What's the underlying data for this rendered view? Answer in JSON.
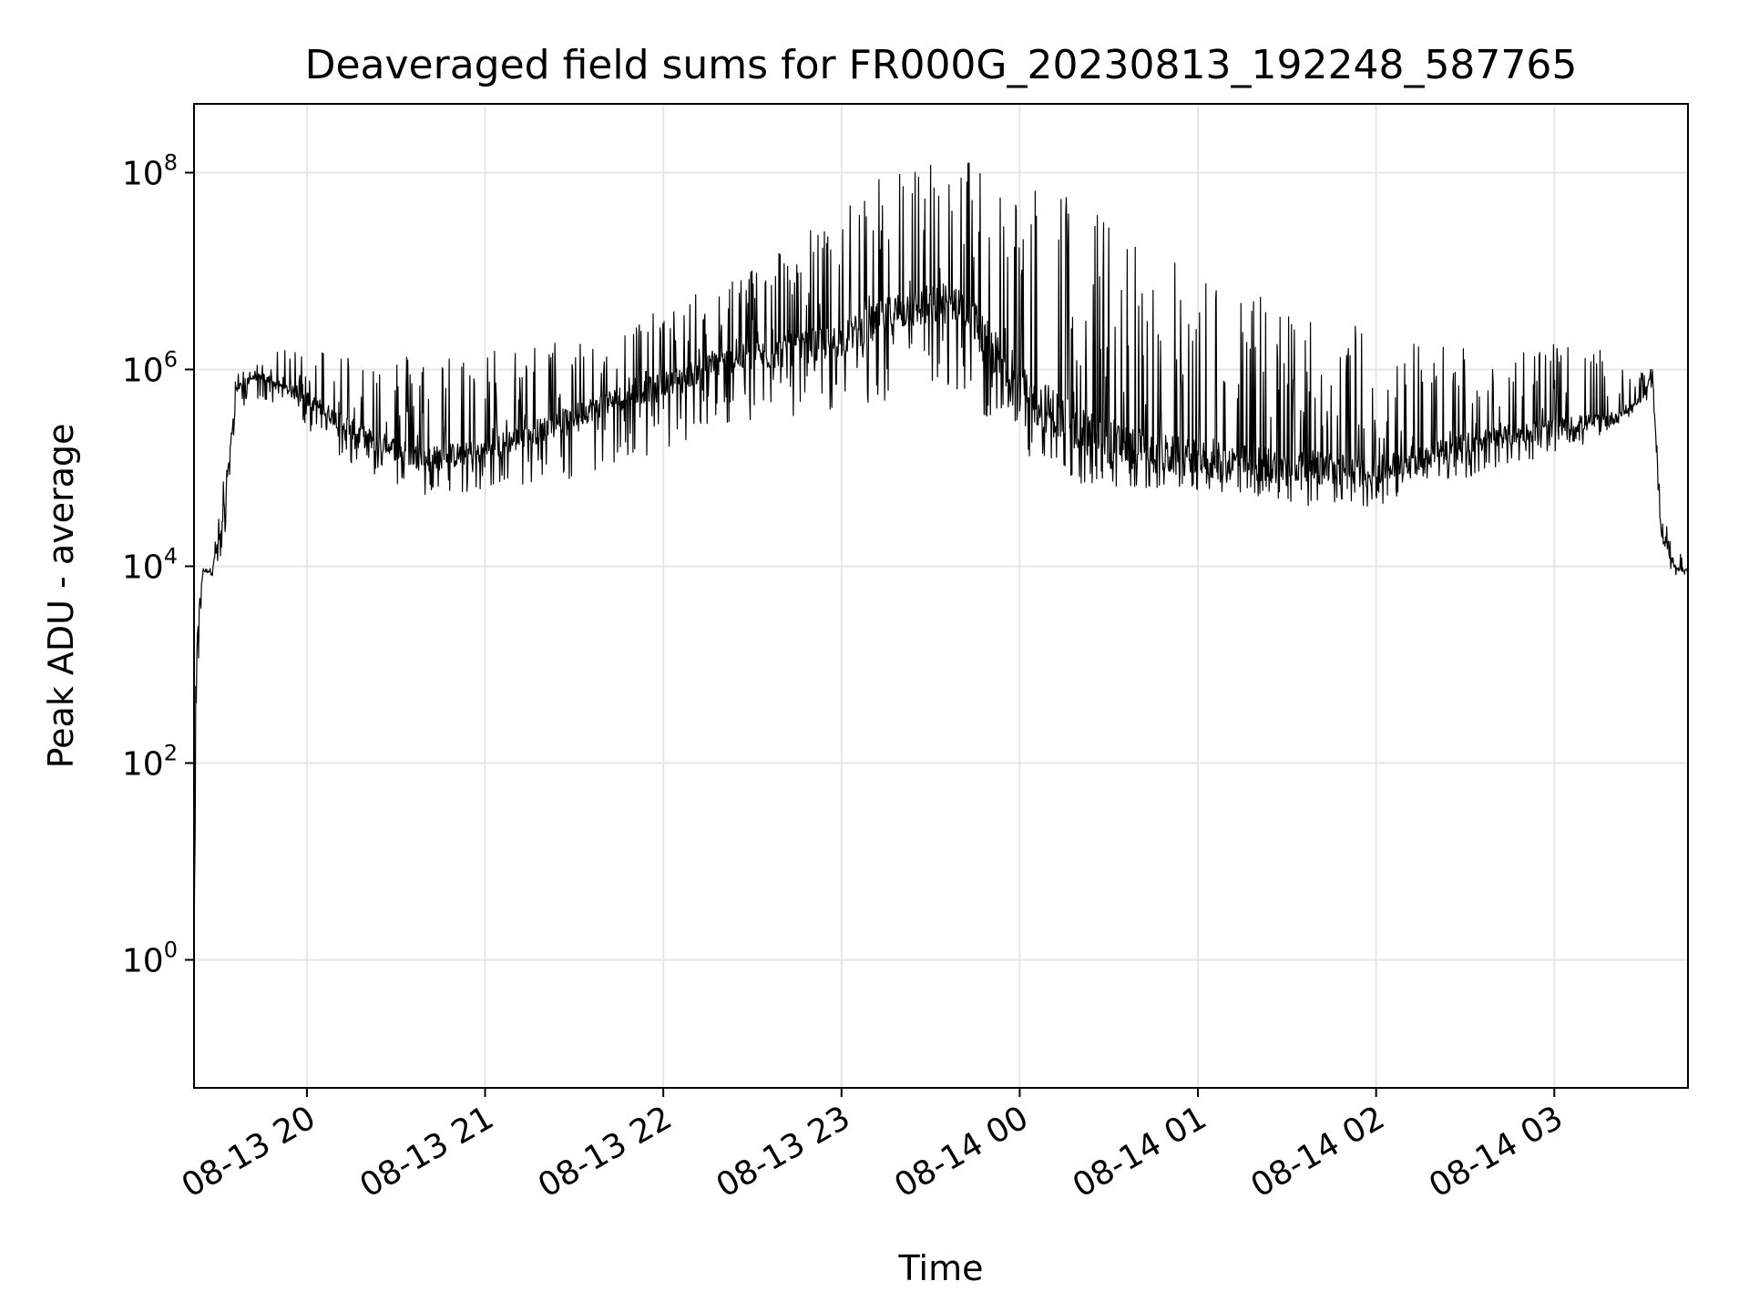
{
  "chart_data": {
    "type": "line",
    "title": "Deaveraged field sums for FR000G_20230813_192248_587765",
    "xlabel": "Time",
    "ylabel": "Peak ADU - average",
    "yscale": "log",
    "ylim": [
      0.05,
      500000000.0
    ],
    "xlim": [
      "2023-08-13 19:22",
      "2023-08-14 03:45"
    ],
    "grid": true,
    "x_ticks": [
      "08-13 20",
      "08-13 21",
      "08-13 22",
      "08-13 23",
      "08-14 00",
      "08-14 01",
      "08-14 02",
      "08-14 03"
    ],
    "y_ticks": [
      {
        "value": 1,
        "base": "10",
        "exp": "0"
      },
      {
        "value": 100,
        "base": "10",
        "exp": "2"
      },
      {
        "value": 10000,
        "base": "10",
        "exp": "4"
      },
      {
        "value": 1000000,
        "base": "10",
        "exp": "6"
      },
      {
        "value": 100000000,
        "base": "10",
        "exp": "8"
      }
    ],
    "series": [
      {
        "color": "#000000",
        "envelope": {
          "time": [
            "2023-08-13 19:22",
            "2023-08-13 19:23",
            "2023-08-13 19:25",
            "2023-08-13 19:28",
            "2023-08-13 19:32",
            "2023-08-13 19:36",
            "2023-08-13 19:40",
            "2023-08-13 19:45",
            "2023-08-13 19:50",
            "2023-08-13 20:00",
            "2023-08-13 20:20",
            "2023-08-13 20:40",
            "2023-08-13 21:00",
            "2023-08-13 21:20",
            "2023-08-13 21:40",
            "2023-08-13 22:00",
            "2023-08-13 22:20",
            "2023-08-13 22:40",
            "2023-08-13 23:00",
            "2023-08-13 23:20",
            "2023-08-13 23:40",
            "2023-08-14 00:00",
            "2023-08-14 00:20",
            "2023-08-14 00:40",
            "2023-08-14 01:00",
            "2023-08-14 01:20",
            "2023-08-14 01:40",
            "2023-08-14 02:00",
            "2023-08-14 02:20",
            "2023-08-14 02:40",
            "2023-08-14 03:00",
            "2023-08-14 03:20",
            "2023-08-14 03:30",
            "2023-08-14 03:33",
            "2023-08-14 03:36",
            "2023-08-14 03:40",
            "2023-08-14 03:45"
          ],
          "low": [
            1,
            500,
            6000,
            6000,
            15000,
            300000,
            500000,
            500000,
            400000,
            250000,
            80000,
            50000,
            60000,
            70000,
            90000,
            150000,
            250000,
            300000,
            400000,
            500000,
            600000,
            150000,
            70000,
            60000,
            60000,
            50000,
            40000,
            40000,
            70000,
            90000,
            120000,
            250000,
            400000,
            600000,
            15000,
            8000,
            8000
          ],
          "high": [
            100,
            3000,
            10000,
            12000,
            80000,
            900000,
            1000000,
            1200000,
            1500000,
            1800000,
            1600000,
            1500000,
            1700000,
            1900000,
            2500000,
            4000000,
            8000000,
            20000000,
            40000000,
            140000000,
            160000000,
            120000000,
            60000000,
            20000000,
            10000000,
            6000000,
            4000000,
            2500000,
            2000000,
            1800000,
            1800000,
            1500000,
            900000,
            1100000,
            40000,
            15000,
            12000
          ],
          "base": [
            1,
            2000,
            9000,
            9000,
            30000,
            600000,
            800000,
            850000,
            700000,
            500000,
            200000,
            120000,
            150000,
            250000,
            450000,
            700000,
            1200000,
            1500000,
            2000000,
            4000000,
            5000000,
            600000,
            250000,
            150000,
            120000,
            110000,
            100000,
            90000,
            150000,
            200000,
            250000,
            320000,
            500000,
            1000000,
            20000,
            10000,
            9000
          ]
        }
      }
    ]
  }
}
